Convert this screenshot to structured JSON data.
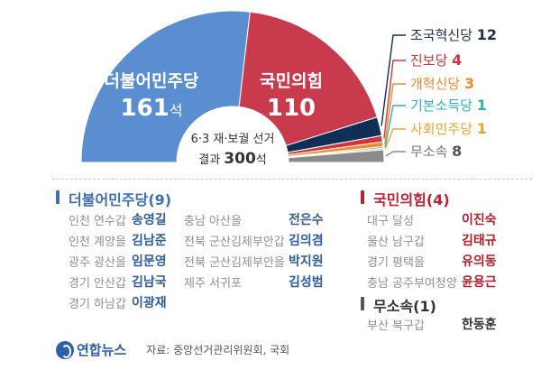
{
  "chart_data": {
    "type": "pie",
    "subtype": "half-donut",
    "total": 300,
    "series": [
      {
        "name": "더불어민주당",
        "value": 161,
        "color": "#5a8ed0"
      },
      {
        "name": "국민의힘",
        "value": 110,
        "color": "#c93a4d"
      },
      {
        "name": "조국혁신당",
        "value": 12,
        "color": "#0f2f57"
      },
      {
        "name": "진보당",
        "value": 4,
        "color": "#d6323d"
      },
      {
        "name": "개혁신당",
        "value": 3,
        "color": "#f08a2a"
      },
      {
        "name": "기본소득당",
        "value": 1,
        "color": "#2ab1c5"
      },
      {
        "name": "사회민주당",
        "value": 1,
        "color": "#f0a22f"
      },
      {
        "name": "무소속",
        "value": 8,
        "color": "#8a8a8a"
      }
    ]
  },
  "center": {
    "line1": "6·3 재·보궐 선거",
    "line2_prefix": "결과 ",
    "line2_number": "300",
    "line2_suffix": "석"
  },
  "arc_labels": {
    "dem_name": "더불어민주당",
    "dem_count": "161",
    "dem_unit": "석",
    "ppp_name": "국민의힘",
    "ppp_count": "110"
  },
  "legend": [
    {
      "name": "조국혁신당",
      "count": "12",
      "color": "#0f2f57"
    },
    {
      "name": "진보당",
      "count": "4",
      "color": "#d6323d"
    },
    {
      "name": "개혁신당",
      "count": "3",
      "color": "#f08a2a"
    },
    {
      "name": "기본소득당",
      "count": "1",
      "color": "#2ab1c5"
    },
    {
      "name": "사회민주당",
      "count": "1",
      "color": "#f0a22f"
    },
    {
      "name": "무소속",
      "count": "8",
      "color": "#8a8a8a"
    }
  ],
  "winners": {
    "dem": {
      "title": "더불어민주당(9)",
      "rows": [
        {
          "district": "인천 연수갑",
          "name": "송영길"
        },
        {
          "district": "인천 계양을",
          "name": "김남준"
        },
        {
          "district": "광주 광산을",
          "name": "임문영"
        },
        {
          "district": "경기 안산갑",
          "name": "김남국"
        },
        {
          "district": "경기 하남갑",
          "name": "이광재"
        },
        {
          "district": "충남 아산을",
          "name": "전은수"
        },
        {
          "district": "전북 군산김제부안갑",
          "name": "김의겸"
        },
        {
          "district": "전북 군산김제부안을",
          "name": "박지원"
        },
        {
          "district": "제주 서귀포",
          "name": "김성범"
        }
      ]
    },
    "ppp": {
      "title": "국민의힘(4)",
      "rows": [
        {
          "district": "대구 달성",
          "name": "이진숙"
        },
        {
          "district": "울산 남구갑",
          "name": "김태규"
        },
        {
          "district": "경기 평택을",
          "name": "유의동"
        },
        {
          "district": "충남 공주부여청양",
          "name": "윤용근"
        }
      ]
    },
    "ind": {
      "title": "무소속(1)",
      "rows": [
        {
          "district": "부산 북구갑",
          "name": "한동훈"
        }
      ]
    }
  },
  "footer": {
    "logo": "연합뉴스",
    "source": "자료: 중앙선거관리위원회, 국회"
  }
}
